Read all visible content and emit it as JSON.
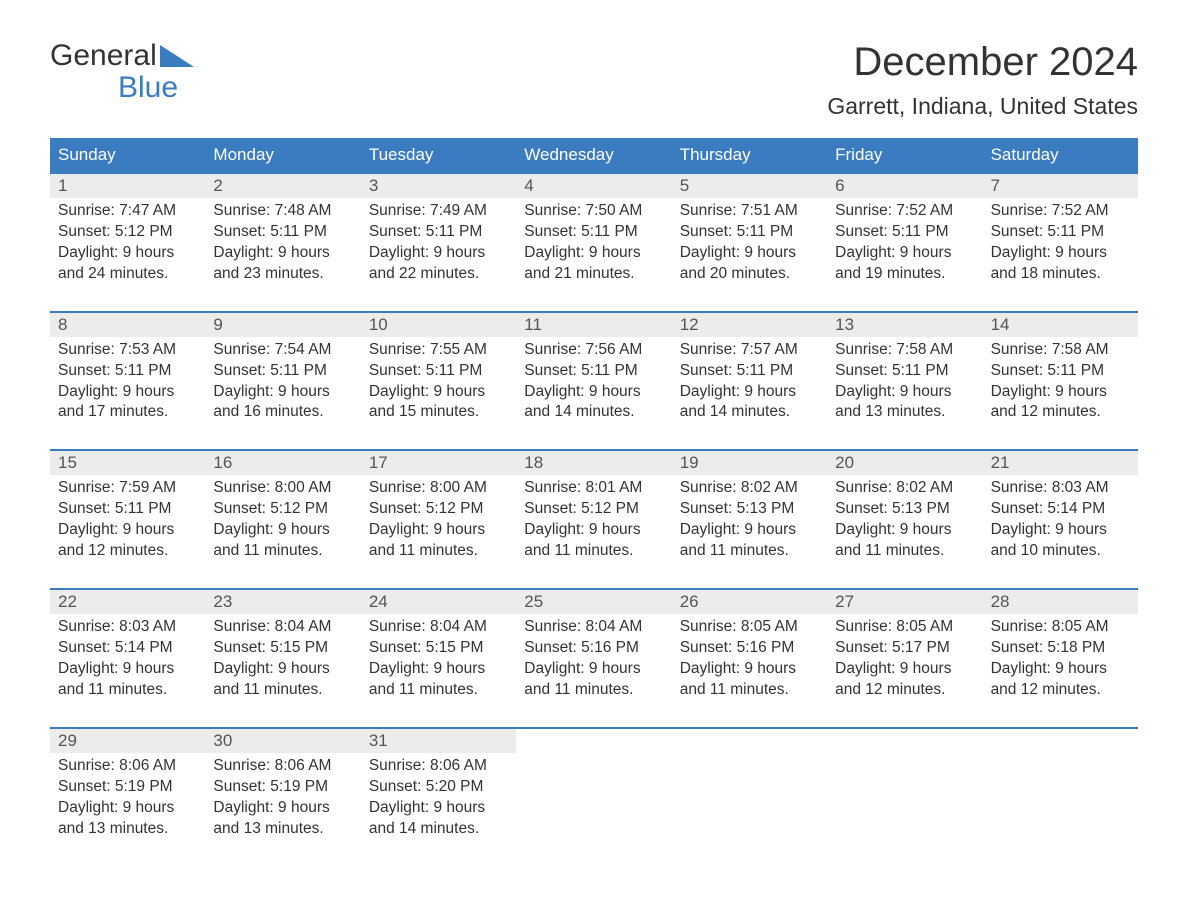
{
  "logo": {
    "line1": "General",
    "line2": "Blue"
  },
  "title": "December 2024",
  "location": "Garrett, Indiana, United States",
  "colors": {
    "header_bg": "#3b7bbf",
    "header_text": "#ffffff",
    "daynum_bg": "#ececec",
    "text": "#333333",
    "accent": "#3b7bbf"
  },
  "day_headers": [
    "Sunday",
    "Monday",
    "Tuesday",
    "Wednesday",
    "Thursday",
    "Friday",
    "Saturday"
  ],
  "weeks": [
    {
      "days": [
        {
          "n": "1",
          "sunrise": "Sunrise: 7:47 AM",
          "sunset": "Sunset: 5:12 PM",
          "d1": "Daylight: 9 hours",
          "d2": "and 24 minutes."
        },
        {
          "n": "2",
          "sunrise": "Sunrise: 7:48 AM",
          "sunset": "Sunset: 5:11 PM",
          "d1": "Daylight: 9 hours",
          "d2": "and 23 minutes."
        },
        {
          "n": "3",
          "sunrise": "Sunrise: 7:49 AM",
          "sunset": "Sunset: 5:11 PM",
          "d1": "Daylight: 9 hours",
          "d2": "and 22 minutes."
        },
        {
          "n": "4",
          "sunrise": "Sunrise: 7:50 AM",
          "sunset": "Sunset: 5:11 PM",
          "d1": "Daylight: 9 hours",
          "d2": "and 21 minutes."
        },
        {
          "n": "5",
          "sunrise": "Sunrise: 7:51 AM",
          "sunset": "Sunset: 5:11 PM",
          "d1": "Daylight: 9 hours",
          "d2": "and 20 minutes."
        },
        {
          "n": "6",
          "sunrise": "Sunrise: 7:52 AM",
          "sunset": "Sunset: 5:11 PM",
          "d1": "Daylight: 9 hours",
          "d2": "and 19 minutes."
        },
        {
          "n": "7",
          "sunrise": "Sunrise: 7:52 AM",
          "sunset": "Sunset: 5:11 PM",
          "d1": "Daylight: 9 hours",
          "d2": "and 18 minutes."
        }
      ]
    },
    {
      "days": [
        {
          "n": "8",
          "sunrise": "Sunrise: 7:53 AM",
          "sunset": "Sunset: 5:11 PM",
          "d1": "Daylight: 9 hours",
          "d2": "and 17 minutes."
        },
        {
          "n": "9",
          "sunrise": "Sunrise: 7:54 AM",
          "sunset": "Sunset: 5:11 PM",
          "d1": "Daylight: 9 hours",
          "d2": "and 16 minutes."
        },
        {
          "n": "10",
          "sunrise": "Sunrise: 7:55 AM",
          "sunset": "Sunset: 5:11 PM",
          "d1": "Daylight: 9 hours",
          "d2": "and 15 minutes."
        },
        {
          "n": "11",
          "sunrise": "Sunrise: 7:56 AM",
          "sunset": "Sunset: 5:11 PM",
          "d1": "Daylight: 9 hours",
          "d2": "and 14 minutes."
        },
        {
          "n": "12",
          "sunrise": "Sunrise: 7:57 AM",
          "sunset": "Sunset: 5:11 PM",
          "d1": "Daylight: 9 hours",
          "d2": "and 14 minutes."
        },
        {
          "n": "13",
          "sunrise": "Sunrise: 7:58 AM",
          "sunset": "Sunset: 5:11 PM",
          "d1": "Daylight: 9 hours",
          "d2": "and 13 minutes."
        },
        {
          "n": "14",
          "sunrise": "Sunrise: 7:58 AM",
          "sunset": "Sunset: 5:11 PM",
          "d1": "Daylight: 9 hours",
          "d2": "and 12 minutes."
        }
      ]
    },
    {
      "days": [
        {
          "n": "15",
          "sunrise": "Sunrise: 7:59 AM",
          "sunset": "Sunset: 5:11 PM",
          "d1": "Daylight: 9 hours",
          "d2": "and 12 minutes."
        },
        {
          "n": "16",
          "sunrise": "Sunrise: 8:00 AM",
          "sunset": "Sunset: 5:12 PM",
          "d1": "Daylight: 9 hours",
          "d2": "and 11 minutes."
        },
        {
          "n": "17",
          "sunrise": "Sunrise: 8:00 AM",
          "sunset": "Sunset: 5:12 PM",
          "d1": "Daylight: 9 hours",
          "d2": "and 11 minutes."
        },
        {
          "n": "18",
          "sunrise": "Sunrise: 8:01 AM",
          "sunset": "Sunset: 5:12 PM",
          "d1": "Daylight: 9 hours",
          "d2": "and 11 minutes."
        },
        {
          "n": "19",
          "sunrise": "Sunrise: 8:02 AM",
          "sunset": "Sunset: 5:13 PM",
          "d1": "Daylight: 9 hours",
          "d2": "and 11 minutes."
        },
        {
          "n": "20",
          "sunrise": "Sunrise: 8:02 AM",
          "sunset": "Sunset: 5:13 PM",
          "d1": "Daylight: 9 hours",
          "d2": "and 11 minutes."
        },
        {
          "n": "21",
          "sunrise": "Sunrise: 8:03 AM",
          "sunset": "Sunset: 5:14 PM",
          "d1": "Daylight: 9 hours",
          "d2": "and 10 minutes."
        }
      ]
    },
    {
      "days": [
        {
          "n": "22",
          "sunrise": "Sunrise: 8:03 AM",
          "sunset": "Sunset: 5:14 PM",
          "d1": "Daylight: 9 hours",
          "d2": "and 11 minutes."
        },
        {
          "n": "23",
          "sunrise": "Sunrise: 8:04 AM",
          "sunset": "Sunset: 5:15 PM",
          "d1": "Daylight: 9 hours",
          "d2": "and 11 minutes."
        },
        {
          "n": "24",
          "sunrise": "Sunrise: 8:04 AM",
          "sunset": "Sunset: 5:15 PM",
          "d1": "Daylight: 9 hours",
          "d2": "and 11 minutes."
        },
        {
          "n": "25",
          "sunrise": "Sunrise: 8:04 AM",
          "sunset": "Sunset: 5:16 PM",
          "d1": "Daylight: 9 hours",
          "d2": "and 11 minutes."
        },
        {
          "n": "26",
          "sunrise": "Sunrise: 8:05 AM",
          "sunset": "Sunset: 5:16 PM",
          "d1": "Daylight: 9 hours",
          "d2": "and 11 minutes."
        },
        {
          "n": "27",
          "sunrise": "Sunrise: 8:05 AM",
          "sunset": "Sunset: 5:17 PM",
          "d1": "Daylight: 9 hours",
          "d2": "and 12 minutes."
        },
        {
          "n": "28",
          "sunrise": "Sunrise: 8:05 AM",
          "sunset": "Sunset: 5:18 PM",
          "d1": "Daylight: 9 hours",
          "d2": "and 12 minutes."
        }
      ]
    },
    {
      "days": [
        {
          "n": "29",
          "sunrise": "Sunrise: 8:06 AM",
          "sunset": "Sunset: 5:19 PM",
          "d1": "Daylight: 9 hours",
          "d2": "and 13 minutes."
        },
        {
          "n": "30",
          "sunrise": "Sunrise: 8:06 AM",
          "sunset": "Sunset: 5:19 PM",
          "d1": "Daylight: 9 hours",
          "d2": "and 13 minutes."
        },
        {
          "n": "31",
          "sunrise": "Sunrise: 8:06 AM",
          "sunset": "Sunset: 5:20 PM",
          "d1": "Daylight: 9 hours",
          "d2": "and 14 minutes."
        },
        null,
        null,
        null,
        null
      ]
    }
  ]
}
